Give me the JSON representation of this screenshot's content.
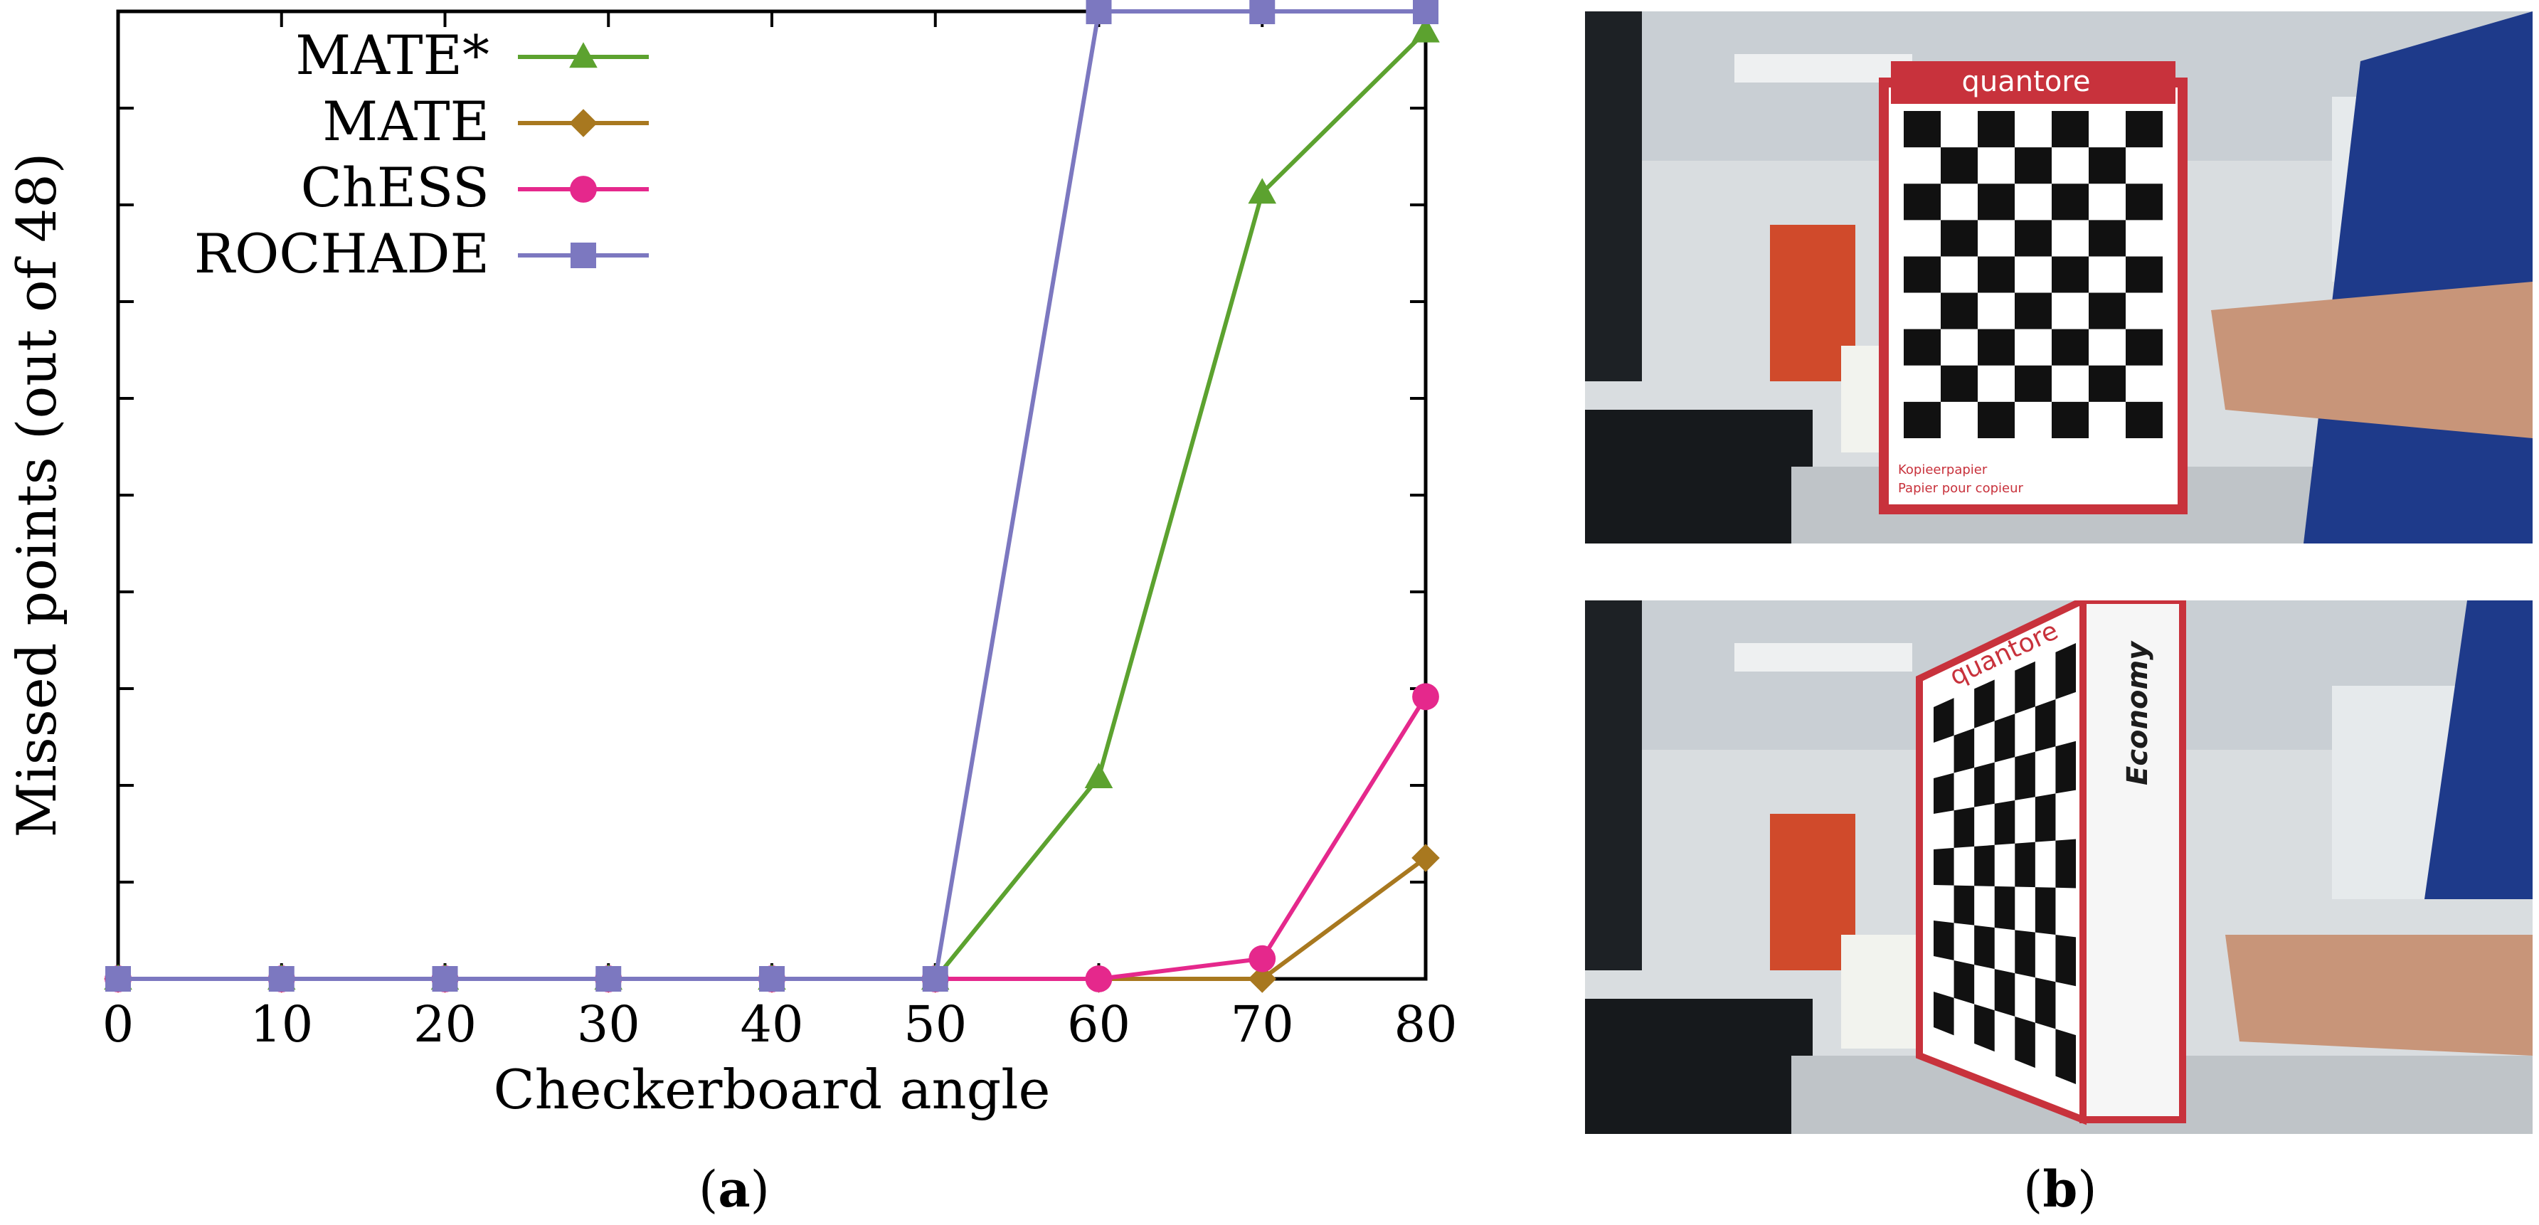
{
  "chart_data": {
    "type": "line",
    "x": [
      0,
      10,
      20,
      30,
      40,
      50,
      60,
      70,
      80
    ],
    "xlabel": "Checkerboard angle",
    "ylabel": "Missed points (out of 48)",
    "xlim": [
      0,
      80
    ],
    "ylim": [
      0,
      48
    ],
    "ytick_count": 10,
    "grid": false,
    "legend_position": "top-left",
    "series": [
      {
        "name": "MATE*",
        "marker": "triangle",
        "color": "#5ca22f",
        "values": [
          0,
          0,
          0,
          0,
          0,
          0,
          10,
          39,
          47
        ]
      },
      {
        "name": "MATE",
        "marker": "diamond",
        "color": "#a8781f",
        "values": [
          0,
          0,
          0,
          0,
          0,
          0,
          0,
          0,
          6
        ]
      },
      {
        "name": "ChESS",
        "marker": "circle",
        "color": "#e5288c",
        "values": [
          0,
          0,
          0,
          0,
          0,
          0,
          0,
          1,
          14
        ]
      },
      {
        "name": "ROCHADE",
        "marker": "square",
        "color": "#7c78c0",
        "values": [
          0,
          0,
          0,
          0,
          0,
          0,
          48,
          48,
          48
        ]
      }
    ]
  },
  "captions": {
    "a_open": "(",
    "a_letter": "a",
    "a_close": ")",
    "b_open": "(",
    "b_letter": "b",
    "b_close": ")"
  },
  "photos": {
    "brand_label": "quantore",
    "side_label": "Economy",
    "box_text_1": "Kopieerpapier",
    "box_text_2": "Papier pour copieur"
  }
}
